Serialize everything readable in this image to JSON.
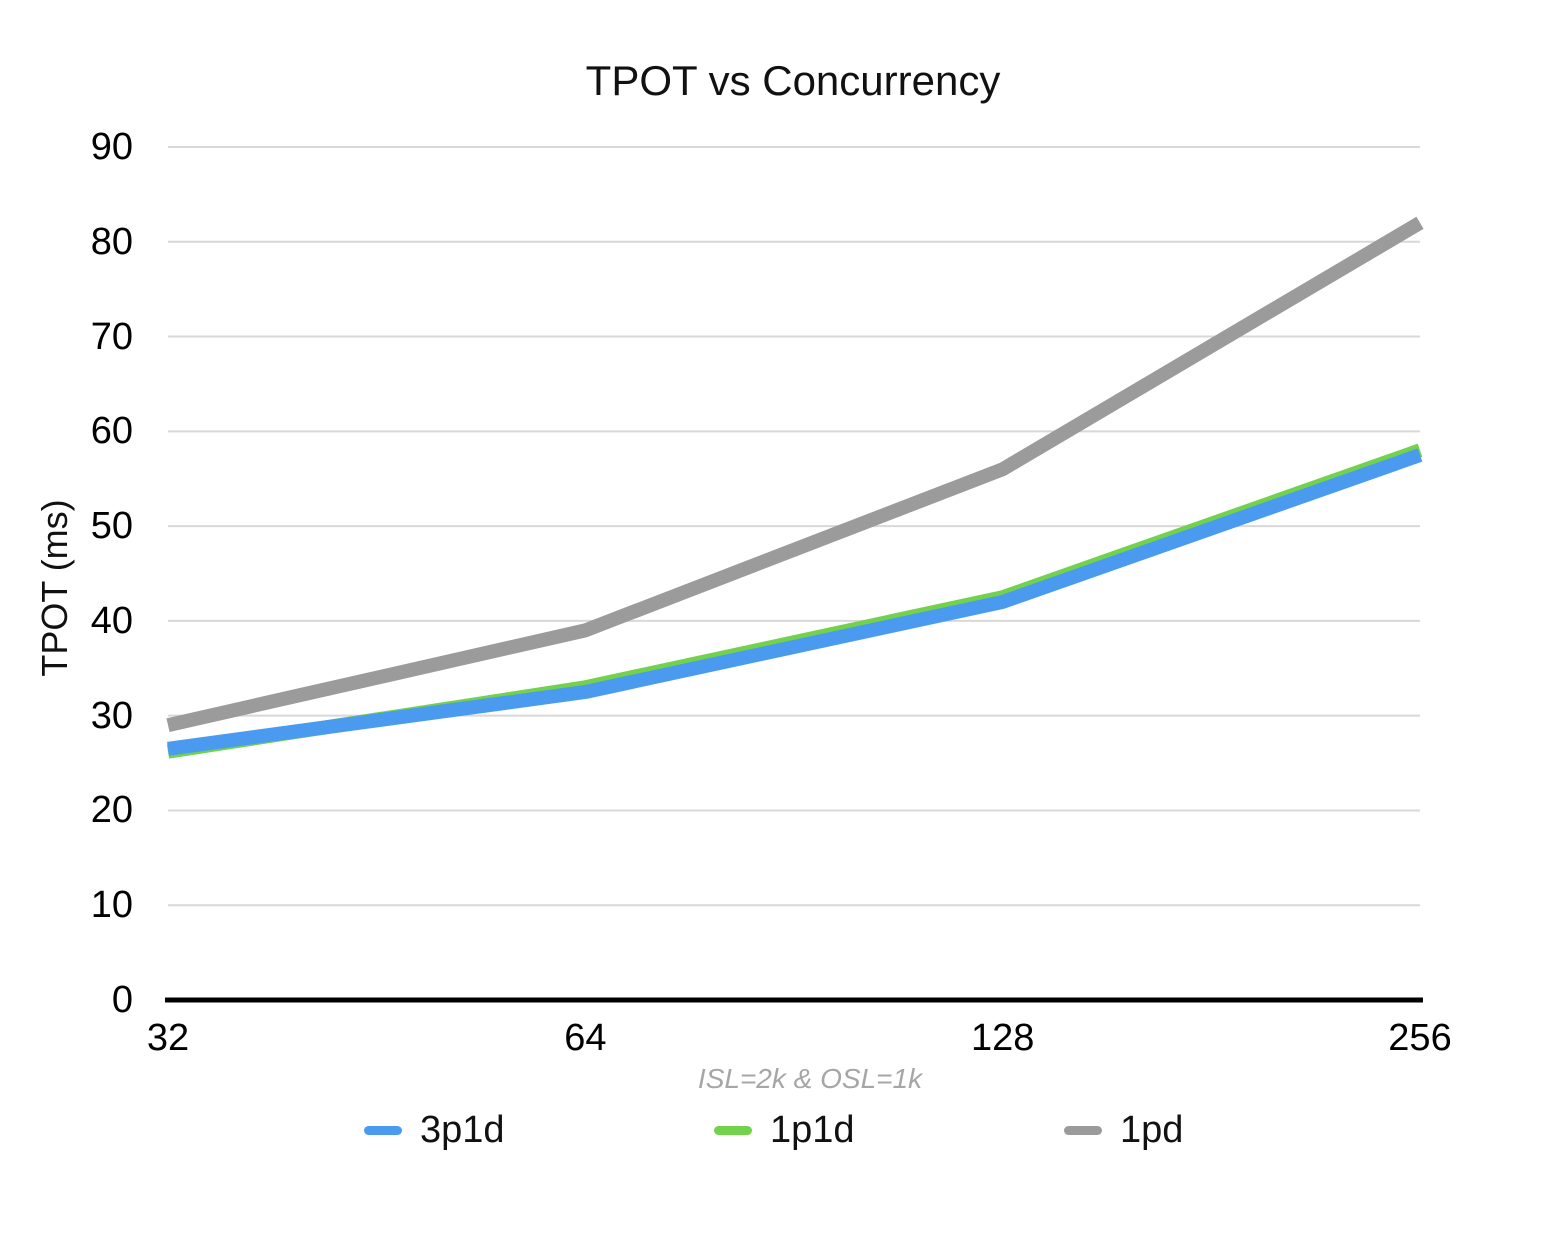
{
  "chart_data": {
    "type": "line",
    "title": "TPOT vs Concurrency",
    "ylabel": "TPOT (ms)",
    "subtitle": "ISL=2k & OSL=1k",
    "categories": [
      "32",
      "64",
      "128",
      "256"
    ],
    "series": [
      {
        "name": "3p1d",
        "color": "#4A9BF0",
        "z": 2,
        "values": [
          26.5,
          32.5,
          42,
          57.5
        ]
      },
      {
        "name": "1p1d",
        "color": "#73D24B",
        "z": 1,
        "values": [
          26.2,
          33,
          42.5,
          58
        ]
      },
      {
        "name": "1pd",
        "color": "#9B9B9B",
        "z": 3,
        "values": [
          29,
          39,
          56,
          82
        ]
      }
    ],
    "ylim": [
      0,
      90
    ],
    "ytick_step": 10,
    "grid": "horizontal",
    "legend_position": "bottom",
    "colors": {
      "gridline": "#D8D8D8",
      "axis_line": "#000000",
      "subtitle_text": "#A6A6A6",
      "tick_text": "#000000"
    }
  }
}
